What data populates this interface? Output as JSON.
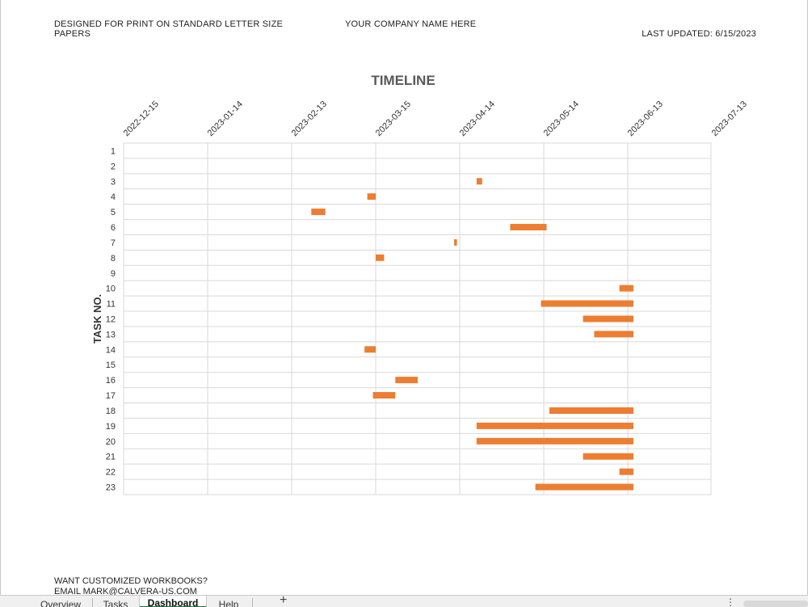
{
  "header": {
    "print_note": "DESIGNED FOR PRINT ON STANDARD LETTER SIZE PAPERS",
    "company": "YOUR COMPANY NAME HERE",
    "last_updated": "LAST UPDATED: 6/15/2023"
  },
  "footer": {
    "promo_line1": "WANT CUSTOMIZED WORKBOOKS?",
    "promo_line2": "EMAIL MARK@CALVERA-US.COM"
  },
  "tabs": [
    {
      "label": "Overview",
      "active": false
    },
    {
      "label": "Tasks",
      "active": false
    },
    {
      "label": "Dashboard",
      "active": true
    },
    {
      "label": "Help",
      "active": false
    }
  ],
  "add_tab_glyph": "+",
  "menu_glyph": "⋮",
  "colors": {
    "bar": "#ed7d31",
    "grid": "#d9d9d9",
    "title": "#595959"
  },
  "chart_data": {
    "type": "bar",
    "orientation": "horizontal",
    "stacked_gantt": true,
    "title": "TIMELINE",
    "ylabel": "TASK NO.",
    "xlabel": "",
    "x_axis_position": "top",
    "x_ticks": [
      "2022-12-15",
      "2023-01-14",
      "2023-02-13",
      "2023-03-15",
      "2023-04-14",
      "2023-05-14",
      "2023-06-13",
      "2023-07-13"
    ],
    "xlim": [
      "2022-12-15",
      "2023-07-13"
    ],
    "grid": true,
    "categories": [
      "1",
      "2",
      "3",
      "4",
      "5",
      "6",
      "7",
      "8",
      "9",
      "10",
      "11",
      "12",
      "13",
      "14",
      "15",
      "16",
      "17",
      "18",
      "19",
      "20",
      "21",
      "22",
      "23"
    ],
    "series": [
      {
        "values": [
          null,
          null,
          [
            "2023-04-20",
            "2023-04-22"
          ],
          [
            "2023-03-12",
            "2023-03-15"
          ],
          [
            "2023-02-20",
            "2023-02-25"
          ],
          [
            "2023-05-02",
            "2023-05-15"
          ],
          [
            "2023-04-12",
            "2023-04-13"
          ],
          [
            "2023-03-15",
            "2023-03-18"
          ],
          null,
          [
            "2023-06-10",
            "2023-06-15"
          ],
          [
            "2023-05-13",
            "2023-06-15"
          ],
          [
            "2023-05-28",
            "2023-06-15"
          ],
          [
            "2023-06-01",
            "2023-06-15"
          ],
          [
            "2023-03-11",
            "2023-03-15"
          ],
          null,
          [
            "2023-03-22",
            "2023-03-30"
          ],
          [
            "2023-03-14",
            "2023-03-22"
          ],
          [
            "2023-05-16",
            "2023-06-15"
          ],
          [
            "2023-04-20",
            "2023-06-15"
          ],
          [
            "2023-04-20",
            "2023-06-15"
          ],
          [
            "2023-05-28",
            "2023-06-15"
          ],
          [
            "2023-06-10",
            "2023-06-15"
          ],
          [
            "2023-05-11",
            "2023-06-15"
          ]
        ]
      }
    ]
  }
}
